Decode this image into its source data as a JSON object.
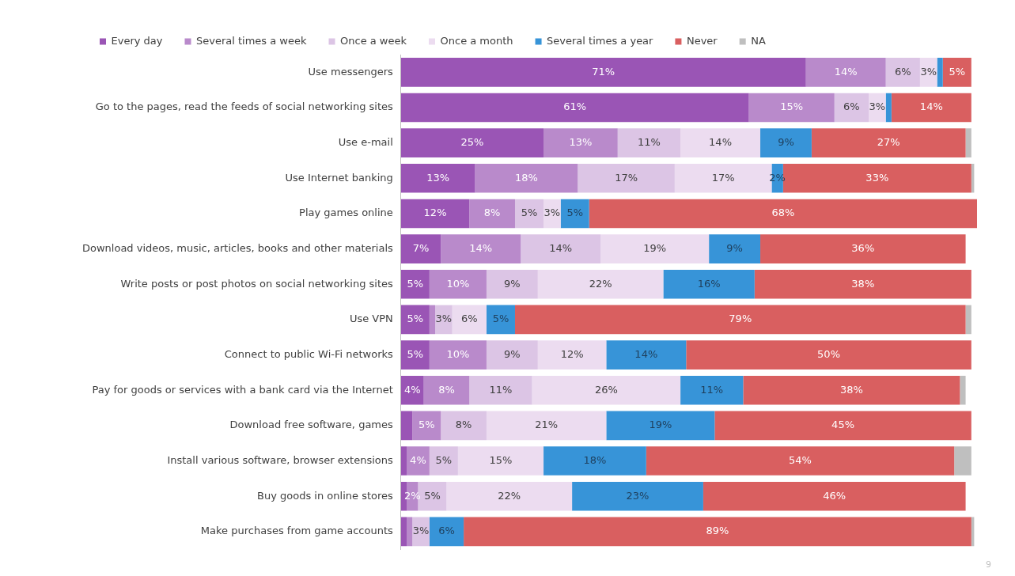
{
  "chart_data": {
    "type": "bar",
    "orientation": "horizontal",
    "stacked": true,
    "legend": "top",
    "categories": [
      "Use messengers",
      "Go to the pages, read the feeds of social networking sites",
      "Use e-mail",
      "Use Internet banking",
      "Play games online",
      "Download videos, music, articles, books and other materials",
      "Write posts or post photos on social networking sites",
      "Use VPN",
      "Connect to public Wi-Fi networks",
      "Pay for goods or services with a bank card via the Internet",
      "Download free software, games",
      "Install various software, browser extensions",
      "Buy goods in online stores",
      "Make purchases from game accounts"
    ],
    "series": [
      {
        "name": "Every day",
        "color": "#9a55b5",
        "values": [
          71,
          61,
          25,
          13,
          12,
          7,
          5,
          5,
          5,
          4,
          2,
          1,
          1,
          1
        ],
        "value_labels": [
          "71%",
          "61%",
          "25%",
          "13%",
          "12%",
          "7%",
          "5%",
          "5%",
          "5%",
          "4%",
          null,
          null,
          null,
          null
        ]
      },
      {
        "name": "Several times a week",
        "color": "#b98acb",
        "values": [
          14,
          15,
          13,
          18,
          8,
          14,
          10,
          1,
          10,
          8,
          5,
          4,
          2,
          1
        ],
        "value_labels": [
          "14%",
          "15%",
          "13%",
          "18%",
          "8%",
          "14%",
          "10%",
          null,
          "10%",
          "8%",
          "5%",
          "4%",
          "2%",
          null
        ]
      },
      {
        "name": "Once a week",
        "color": "#dcc5e5",
        "values": [
          6,
          6,
          11,
          17,
          5,
          14,
          9,
          3,
          9,
          11,
          8,
          5,
          5,
          3
        ],
        "value_labels": [
          "6%",
          "6%",
          "11%",
          "17%",
          "5%",
          "14%",
          "9%",
          "3%",
          "9%",
          "11%",
          "8%",
          "5%",
          "5%",
          "3%"
        ]
      },
      {
        "name": "Once a month",
        "color": "#ecdcf0",
        "values": [
          3,
          3,
          14,
          17,
          3,
          19,
          22,
          6,
          12,
          26,
          21,
          15,
          22,
          0
        ],
        "value_labels": [
          "3%",
          "3%",
          "14%",
          "17%",
          "3%",
          "19%",
          "22%",
          "6%",
          "12%",
          "26%",
          "21%",
          "15%",
          "22%",
          null
        ]
      },
      {
        "name": "Several times a year",
        "color": "#3794d8",
        "values": [
          1,
          1,
          9,
          2,
          5,
          9,
          16,
          5,
          14,
          11,
          19,
          18,
          23,
          6
        ],
        "value_labels": [
          null,
          null,
          "9%",
          "2%",
          "5%",
          "9%",
          "16%",
          "5%",
          "14%",
          "11%",
          "19%",
          "18%",
          "23%",
          "6%"
        ]
      },
      {
        "name": "Never",
        "color": "#d95f60",
        "values": [
          5,
          14,
          27,
          33,
          68,
          36,
          38,
          79,
          50,
          38,
          45,
          54,
          46,
          89
        ],
        "value_labels": [
          "5%",
          "14%",
          "27%",
          "33%",
          "68%",
          "36%",
          "38%",
          "79%",
          "50%",
          "38%",
          "45%",
          "54%",
          "46%",
          "89%"
        ]
      },
      {
        "name": "NA",
        "color": "#bfbfbf",
        "values": [
          0,
          0,
          1,
          0.5,
          0,
          0,
          0,
          1,
          0,
          1,
          0,
          3,
          0,
          0.5
        ],
        "value_labels": [
          null,
          null,
          null,
          null,
          null,
          null,
          null,
          null,
          null,
          null,
          null,
          null,
          null,
          null
        ]
      }
    ],
    "annotations": [
      "9"
    ]
  }
}
